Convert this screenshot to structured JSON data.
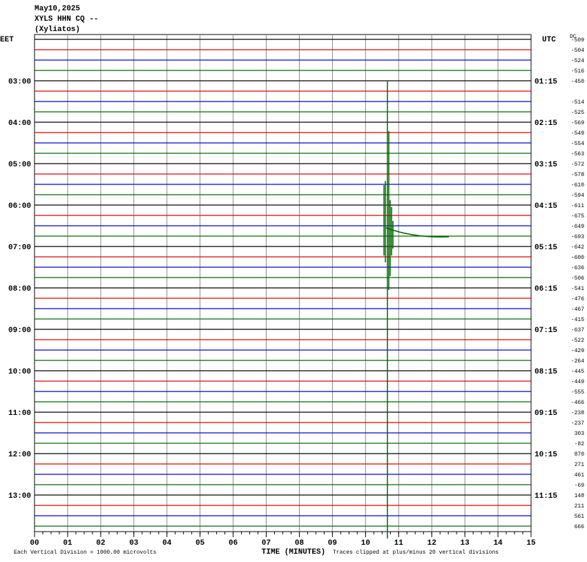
{
  "header": {
    "date": "May10,2025",
    "station": "XYLS HHN CQ --",
    "location": "(Xyliatos)"
  },
  "left_label": "EET",
  "right_label": "UTC",
  "offset_label": "DC",
  "trace_colors": [
    "#000000",
    "#dd0000",
    "#0000cc",
    "#006600"
  ],
  "eet_times": [
    "03:00",
    "04:00",
    "05:00",
    "06:00",
    "07:00",
    "08:00",
    "09:00",
    "10:00",
    "11:00",
    "12:00",
    "13:00"
  ],
  "utc_times": [
    "01:15",
    "02:15",
    "03:15",
    "04:15",
    "05:15",
    "06:15",
    "07:15",
    "08:15",
    "09:15",
    "10:15",
    "11:15"
  ],
  "offsets": [
    -509,
    -504,
    -524,
    -516,
    -450,
    null,
    -514,
    -525,
    -569,
    -549,
    -554,
    -563,
    -572,
    -578,
    -610,
    -594,
    -611,
    -675,
    -649,
    -693,
    -642,
    -600,
    -636,
    -506,
    -541,
    -476,
    -467,
    -415,
    -637,
    -522,
    -429,
    -264,
    -445,
    -449,
    -555,
    -466,
    -238,
    -237,
    303,
    -82,
    870,
    271,
    461,
    -69,
    148,
    211,
    561,
    666
  ],
  "x_ticks": [
    "00",
    "01",
    "02",
    "03",
    "04",
    "05",
    "06",
    "07",
    "08",
    "09",
    "10",
    "11",
    "12",
    "13",
    "14",
    "15"
  ],
  "x_label": "TIME (MINUTES)",
  "footer_left": "Each Vertical Division = 1000.00 microvolts",
  "footer_right": "Traces clipped at plus/minus 20 vertical divisions"
}
